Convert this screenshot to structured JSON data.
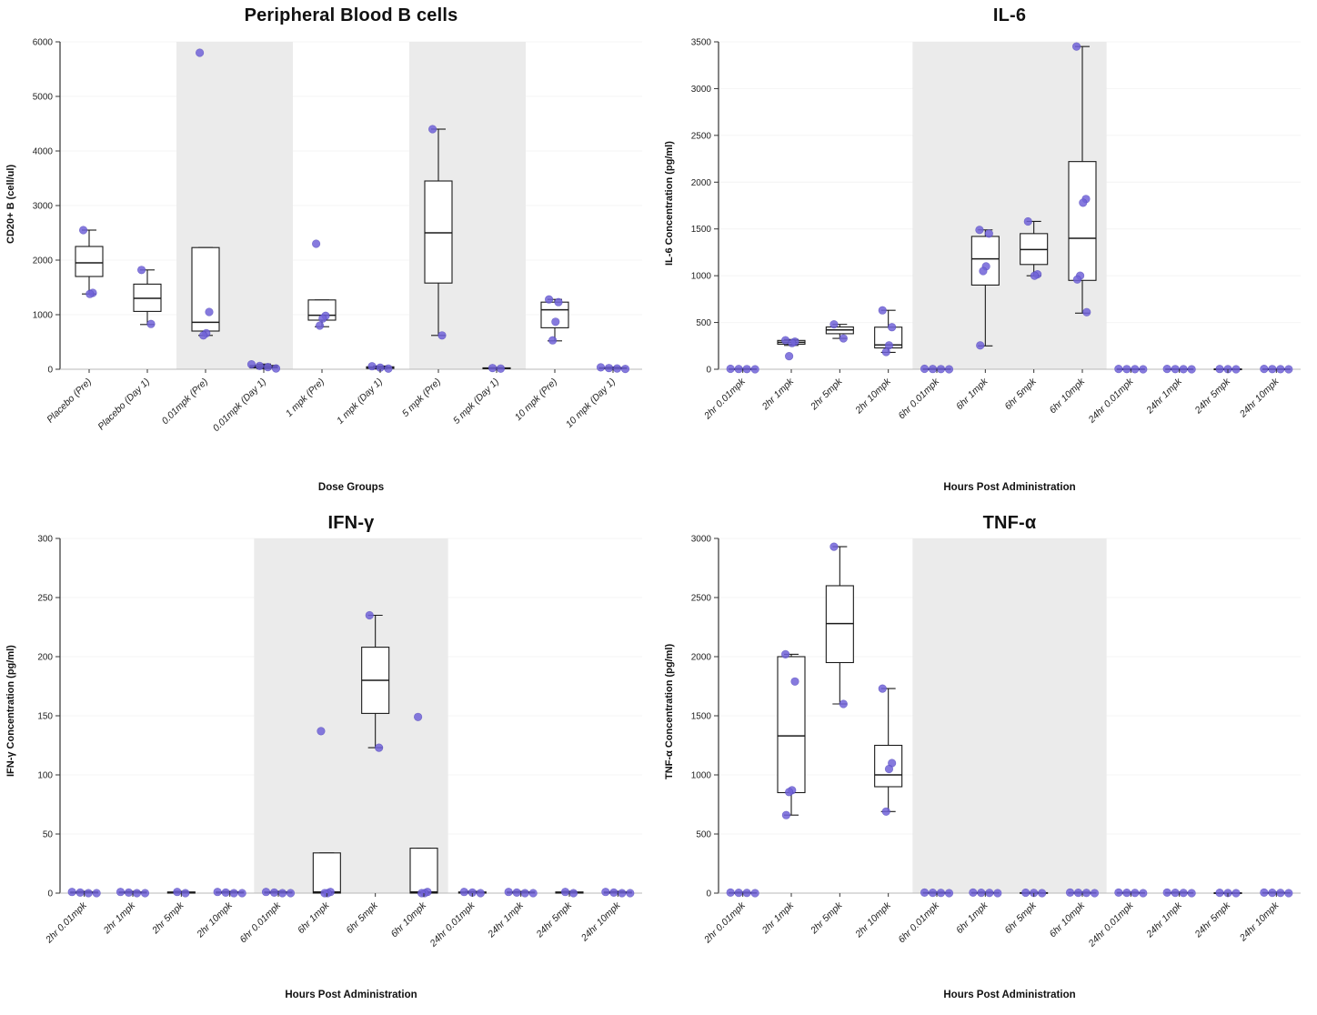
{
  "figure": {
    "background": "#ffffff"
  },
  "style": {
    "point_color": "#7163d8",
    "point_stroke": "#4a3fb5",
    "box_fill": "#ffffff",
    "box_stroke": "#1a1a1a",
    "band_color": "#ebebeb",
    "grid_color": "#f4f4f4",
    "axis_color": "#333333",
    "tick_label_color": "#222222"
  },
  "chart_data": [
    {
      "type": "boxplot",
      "title": "Peripheral Blood B cells",
      "xlabel": "Dose Groups",
      "ylabel": "CD20+ B (cell/ul)",
      "ylim": [
        0,
        6000
      ],
      "yticks": [
        0,
        1000,
        2000,
        3000,
        4000,
        5000,
        6000
      ],
      "grid": true,
      "shaded_ranges": [
        [
          2,
          3
        ],
        [
          6,
          7
        ]
      ],
      "categories": [
        "Placebo (Pre)",
        "Placebo (Day 1)",
        "0.01mpk (Pre)",
        "0.01mpk (Day 1)",
        "1 mpk (Pre)",
        "1 mpk (Day 1)",
        "5 mpk (Pre)",
        "5 mpk (Day 1)",
        "10 mpk (Pre)",
        "10 mpk (Day 1)"
      ],
      "groups": [
        {
          "box": {
            "lo": 1380,
            "q1": 1700,
            "med": 1950,
            "q3": 2250,
            "hi": 2550
          },
          "points": [
            2550,
            1400,
            1380
          ]
        },
        {
          "box": {
            "lo": 820,
            "q1": 1060,
            "med": 1300,
            "q3": 1560,
            "hi": 1820
          },
          "points": [
            1820,
            830
          ]
        },
        {
          "box": {
            "lo": 620,
            "q1": 700,
            "med": 860,
            "q3": 2230,
            "hi": 2230
          },
          "points": [
            5800,
            1050,
            660,
            620
          ]
        },
        {
          "box": {
            "lo": 10,
            "q1": 25,
            "med": 45,
            "q3": 70,
            "hi": 95
          },
          "points": [
            90,
            60,
            40,
            15
          ]
        },
        {
          "box": {
            "lo": 780,
            "q1": 900,
            "med": 990,
            "q3": 1270,
            "hi": 1270
          },
          "points": [
            2300,
            980,
            930,
            800
          ]
        },
        {
          "box": {
            "lo": 5,
            "q1": 15,
            "med": 30,
            "q3": 45,
            "hi": 60
          },
          "points": [
            55,
            30,
            12
          ]
        },
        {
          "box": {
            "lo": 620,
            "q1": 1580,
            "med": 2500,
            "q3": 3450,
            "hi": 4400
          },
          "points": [
            4400,
            620
          ]
        },
        {
          "box": {
            "lo": 5,
            "q1": 10,
            "med": 18,
            "q3": 26,
            "hi": 32
          },
          "points": [
            22,
            12
          ]
        },
        {
          "box": {
            "lo": 520,
            "q1": 760,
            "med": 1090,
            "q3": 1230,
            "hi": 1280
          },
          "points": [
            1280,
            1230,
            870,
            530
          ]
        },
        {
          "box": {
            "lo": 5,
            "q1": 12,
            "med": 20,
            "q3": 30,
            "hi": 40
          },
          "points": [
            35,
            22,
            14,
            6
          ]
        }
      ]
    },
    {
      "type": "boxplot",
      "title": "IL-6",
      "xlabel": "Hours Post Administration",
      "ylabel": "IL-6 Concentration (pg/ml)",
      "ylim": [
        0,
        3500
      ],
      "yticks": [
        0,
        500,
        1000,
        1500,
        2000,
        2500,
        3000,
        3500
      ],
      "grid": true,
      "shaded_ranges": [
        [
          4,
          7
        ]
      ],
      "categories": [
        "2hr 0.01mpk",
        "2hr 1mpk",
        "2hr 5mpk",
        "2hr 10mpk",
        "6hr 0.01mpk",
        "6hr 1mpk",
        "6hr 5mpk",
        "6hr 10mpk",
        "24hr 0.01mpk",
        "24hr 1mpk",
        "24hr 5mpk",
        "24hr 10mpk"
      ],
      "groups": [
        {
          "box": {
            "lo": 0,
            "q1": 0,
            "med": 2,
            "q3": 5,
            "hi": 8
          },
          "points": [
            5,
            3,
            2,
            0
          ]
        },
        {
          "box": {
            "lo": 255,
            "q1": 268,
            "med": 288,
            "q3": 308,
            "hi": 318
          },
          "points": [
            310,
            295,
            280,
            140
          ]
        },
        {
          "box": {
            "lo": 330,
            "q1": 380,
            "med": 420,
            "q3": 452,
            "hi": 480
          },
          "points": [
            480,
            330
          ]
        },
        {
          "box": {
            "lo": 180,
            "q1": 228,
            "med": 260,
            "q3": 450,
            "hi": 630
          },
          "points": [
            630,
            450,
            255,
            185
          ]
        },
        {
          "box": {
            "lo": 0,
            "q1": 0,
            "med": 2,
            "q3": 5,
            "hi": 8
          },
          "points": [
            5,
            3,
            2,
            0
          ]
        },
        {
          "box": {
            "lo": 250,
            "q1": 900,
            "med": 1180,
            "q3": 1420,
            "hi": 1490
          },
          "points": [
            1490,
            1450,
            1100,
            1050,
            255
          ]
        },
        {
          "box": {
            "lo": 1000,
            "q1": 1120,
            "med": 1280,
            "q3": 1450,
            "hi": 1580
          },
          "points": [
            1580,
            1015,
            1000
          ]
        },
        {
          "box": {
            "lo": 600,
            "q1": 950,
            "med": 1400,
            "q3": 2220,
            "hi": 3450
          },
          "points": [
            3450,
            1820,
            1780,
            1000,
            960,
            610
          ]
        },
        {
          "box": {
            "lo": 0,
            "q1": 0,
            "med": 2,
            "q3": 4,
            "hi": 6
          },
          "points": [
            4,
            2,
            1,
            0
          ]
        },
        {
          "box": {
            "lo": 0,
            "q1": 0,
            "med": 2,
            "q3": 4,
            "hi": 6
          },
          "points": [
            4,
            2,
            1,
            0
          ]
        },
        {
          "box": {
            "lo": 0,
            "q1": 0,
            "med": 1,
            "q3": 3,
            "hi": 5
          },
          "points": [
            3,
            1,
            0
          ]
        },
        {
          "box": {
            "lo": 0,
            "q1": 0,
            "med": 2,
            "q3": 4,
            "hi": 6
          },
          "points": [
            4,
            2,
            1,
            0
          ]
        }
      ]
    },
    {
      "type": "boxplot",
      "title": "IFN-γ",
      "xlabel": "Hours Post Administration",
      "ylabel": "IFN-γ Concentration (pg/ml)",
      "ylim": [
        0,
        300
      ],
      "yticks": [
        0,
        50,
        100,
        150,
        200,
        250,
        300
      ],
      "grid": true,
      "shaded_ranges": [
        [
          4,
          7
        ]
      ],
      "categories": [
        "2hr 0.01mpk",
        "2hr 1mpk",
        "2hr 5mpk",
        "2hr 10mpk",
        "6hr 0.01mpk",
        "6hr 1mpk",
        "6hr 5mpk",
        "6hr 10mpk",
        "24hr 0.01mpk",
        "24hr 1mpk",
        "24hr 5mpk",
        "24hr 10mpk"
      ],
      "groups": [
        {
          "box": {
            "lo": 0,
            "q1": 0,
            "med": 0.5,
            "q3": 1,
            "hi": 1.5
          },
          "points": [
            1,
            0.5,
            0,
            0
          ]
        },
        {
          "box": {
            "lo": 0,
            "q1": 0,
            "med": 0.5,
            "q3": 1,
            "hi": 1.5
          },
          "points": [
            1,
            0.5,
            0,
            0
          ]
        },
        {
          "box": {
            "lo": 0,
            "q1": 0,
            "med": 0.5,
            "q3": 1,
            "hi": 1.5
          },
          "points": [
            1,
            0
          ]
        },
        {
          "box": {
            "lo": 0,
            "q1": 0,
            "med": 0.5,
            "q3": 1,
            "hi": 1.5
          },
          "points": [
            1,
            0.5,
            0,
            0
          ]
        },
        {
          "box": {
            "lo": 0,
            "q1": 0,
            "med": 0.5,
            "q3": 1,
            "hi": 1.5
          },
          "points": [
            1,
            0.5,
            0,
            0
          ]
        },
        {
          "box": {
            "lo": 0,
            "q1": 0,
            "med": 1,
            "q3": 34,
            "hi": 34
          },
          "points": [
            137,
            1,
            0,
            0
          ]
        },
        {
          "box": {
            "lo": 123,
            "q1": 152,
            "med": 180,
            "q3": 208,
            "hi": 235
          },
          "points": [
            235,
            123
          ]
        },
        {
          "box": {
            "lo": 0,
            "q1": 0,
            "med": 1,
            "q3": 38,
            "hi": 38
          },
          "points": [
            149,
            1,
            0,
            0
          ]
        },
        {
          "box": {
            "lo": 0,
            "q1": 0,
            "med": 0.5,
            "q3": 1,
            "hi": 1.5
          },
          "points": [
            1,
            0.5,
            0
          ]
        },
        {
          "box": {
            "lo": 0,
            "q1": 0,
            "med": 0.5,
            "q3": 1,
            "hi": 1.5
          },
          "points": [
            1,
            0.5,
            0,
            0
          ]
        },
        {
          "box": {
            "lo": 0,
            "q1": 0,
            "med": 0.5,
            "q3": 1,
            "hi": 1.5
          },
          "points": [
            1,
            0
          ]
        },
        {
          "box": {
            "lo": 0,
            "q1": 0,
            "med": 0.5,
            "q3": 1,
            "hi": 1.5
          },
          "points": [
            1,
            0.5,
            0,
            0
          ]
        }
      ]
    },
    {
      "type": "boxplot",
      "title": "TNF-α",
      "xlabel": "Hours Post Administration",
      "ylabel": "TNF-α Concentration (pg/ml)",
      "ylim": [
        0,
        3000
      ],
      "yticks": [
        0,
        500,
        1000,
        1500,
        2000,
        2500,
        3000
      ],
      "grid": true,
      "shaded_ranges": [
        [
          4,
          7
        ]
      ],
      "categories": [
        "2hr 0.01mpk",
        "2hr 1mpk",
        "2hr 5mpk",
        "2hr 10mpk",
        "6hr 0.01mpk",
        "6hr 1mpk",
        "6hr 5mpk",
        "6hr 10mpk",
        "24hr 0.01mpk",
        "24hr 1mpk",
        "24hr 5mpk",
        "24hr 10mpk"
      ],
      "groups": [
        {
          "box": {
            "lo": 0,
            "q1": 0,
            "med": 2,
            "q3": 5,
            "hi": 8
          },
          "points": [
            5,
            3,
            2,
            0
          ]
        },
        {
          "box": {
            "lo": 660,
            "q1": 850,
            "med": 1330,
            "q3": 2000,
            "hi": 2020
          },
          "points": [
            2020,
            1790,
            870,
            855,
            660
          ]
        },
        {
          "box": {
            "lo": 1600,
            "q1": 1950,
            "med": 2280,
            "q3": 2600,
            "hi": 2930
          },
          "points": [
            2930,
            1600
          ]
        },
        {
          "box": {
            "lo": 690,
            "q1": 900,
            "med": 1000,
            "q3": 1250,
            "hi": 1730
          },
          "points": [
            1730,
            1100,
            1050,
            690
          ]
        },
        {
          "box": {
            "lo": 0,
            "q1": 0,
            "med": 2,
            "q3": 5,
            "hi": 8
          },
          "points": [
            5,
            3,
            2,
            0
          ]
        },
        {
          "box": {
            "lo": 0,
            "q1": 0,
            "med": 2,
            "q3": 5,
            "hi": 8
          },
          "points": [
            5,
            3,
            2,
            0
          ]
        },
        {
          "box": {
            "lo": 0,
            "q1": 0,
            "med": 2,
            "q3": 4,
            "hi": 6
          },
          "points": [
            4,
            2,
            0
          ]
        },
        {
          "box": {
            "lo": 0,
            "q1": 0,
            "med": 2,
            "q3": 5,
            "hi": 8
          },
          "points": [
            5,
            3,
            2,
            0
          ]
        },
        {
          "box": {
            "lo": 0,
            "q1": 0,
            "med": 2,
            "q3": 5,
            "hi": 8
          },
          "points": [
            5,
            3,
            2,
            0
          ]
        },
        {
          "box": {
            "lo": 0,
            "q1": 0,
            "med": 2,
            "q3": 5,
            "hi": 8
          },
          "points": [
            5,
            3,
            2,
            0
          ]
        },
        {
          "box": {
            "lo": 0,
            "q1": 0,
            "med": 1,
            "q3": 3,
            "hi": 5
          },
          "points": [
            3,
            1,
            0
          ]
        },
        {
          "box": {
            "lo": 0,
            "q1": 0,
            "med": 2,
            "q3": 5,
            "hi": 8
          },
          "points": [
            5,
            3,
            2,
            0
          ]
        }
      ]
    }
  ]
}
